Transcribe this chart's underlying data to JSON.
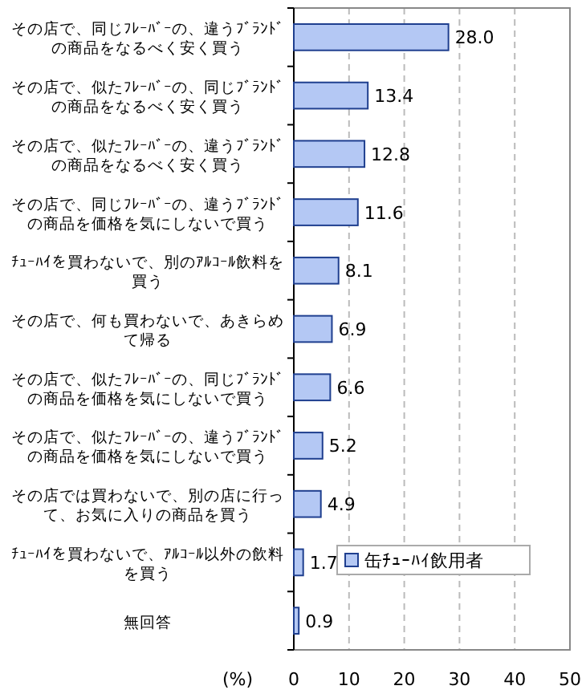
{
  "chart_data": {
    "type": "bar",
    "orientation": "horizontal",
    "xlabel": "(%)",
    "categories": [
      "その店で、同じﾌﾚｰﾊﾞｰの、違うﾌﾞﾗﾝﾄﾞの商品をなるべく安く買う",
      "その店で、似たﾌﾚｰﾊﾞｰの、同じﾌﾞﾗﾝﾄﾞの商品をなるべく安く買う",
      "その店で、似たﾌﾚｰﾊﾞｰの、違うﾌﾞﾗﾝﾄﾞの商品をなるべく安く買う",
      "その店で、同じﾌﾚｰﾊﾞｰの、違うﾌﾞﾗﾝﾄﾞの商品を価格を気にしないで買う",
      "ﾁｭｰﾊｲを買わないで、別のｱﾙｺｰﾙ飲料を買う",
      "その店で、何も買わないで、あきらめて帰る",
      "その店で、似たﾌﾚｰﾊﾞｰの、同じﾌﾞﾗﾝﾄﾞの商品を価格を気にしないで買う",
      "その店で、似たﾌﾚｰﾊﾞｰの、違うﾌﾞﾗﾝﾄﾞの商品を価格を気にしないで買う",
      "その店では買わないで、別の店に行って、お気に入りの商品を買う",
      "ﾁｭｰﾊｲを買わないで、ｱﾙｺｰﾙ以外の飲料を買う",
      "無回答"
    ],
    "series": [
      {
        "name": "缶ﾁｭｰﾊｲ飲用者",
        "color": "#b4c8f4",
        "values": [
          28.0,
          13.4,
          12.8,
          11.6,
          8.1,
          6.9,
          6.6,
          5.2,
          4.9,
          1.7,
          0.9
        ],
        "value_labels": [
          "28.0",
          "13.4",
          "12.8",
          "11.6",
          "8.1",
          "6.9",
          "6.6",
          "5.2",
          "4.9",
          "1.7",
          "0.9"
        ]
      }
    ],
    "xlim": [
      0,
      50
    ],
    "xticks": [
      0,
      10,
      20,
      30,
      40,
      50
    ],
    "grid": "x",
    "legend": "bottom"
  }
}
